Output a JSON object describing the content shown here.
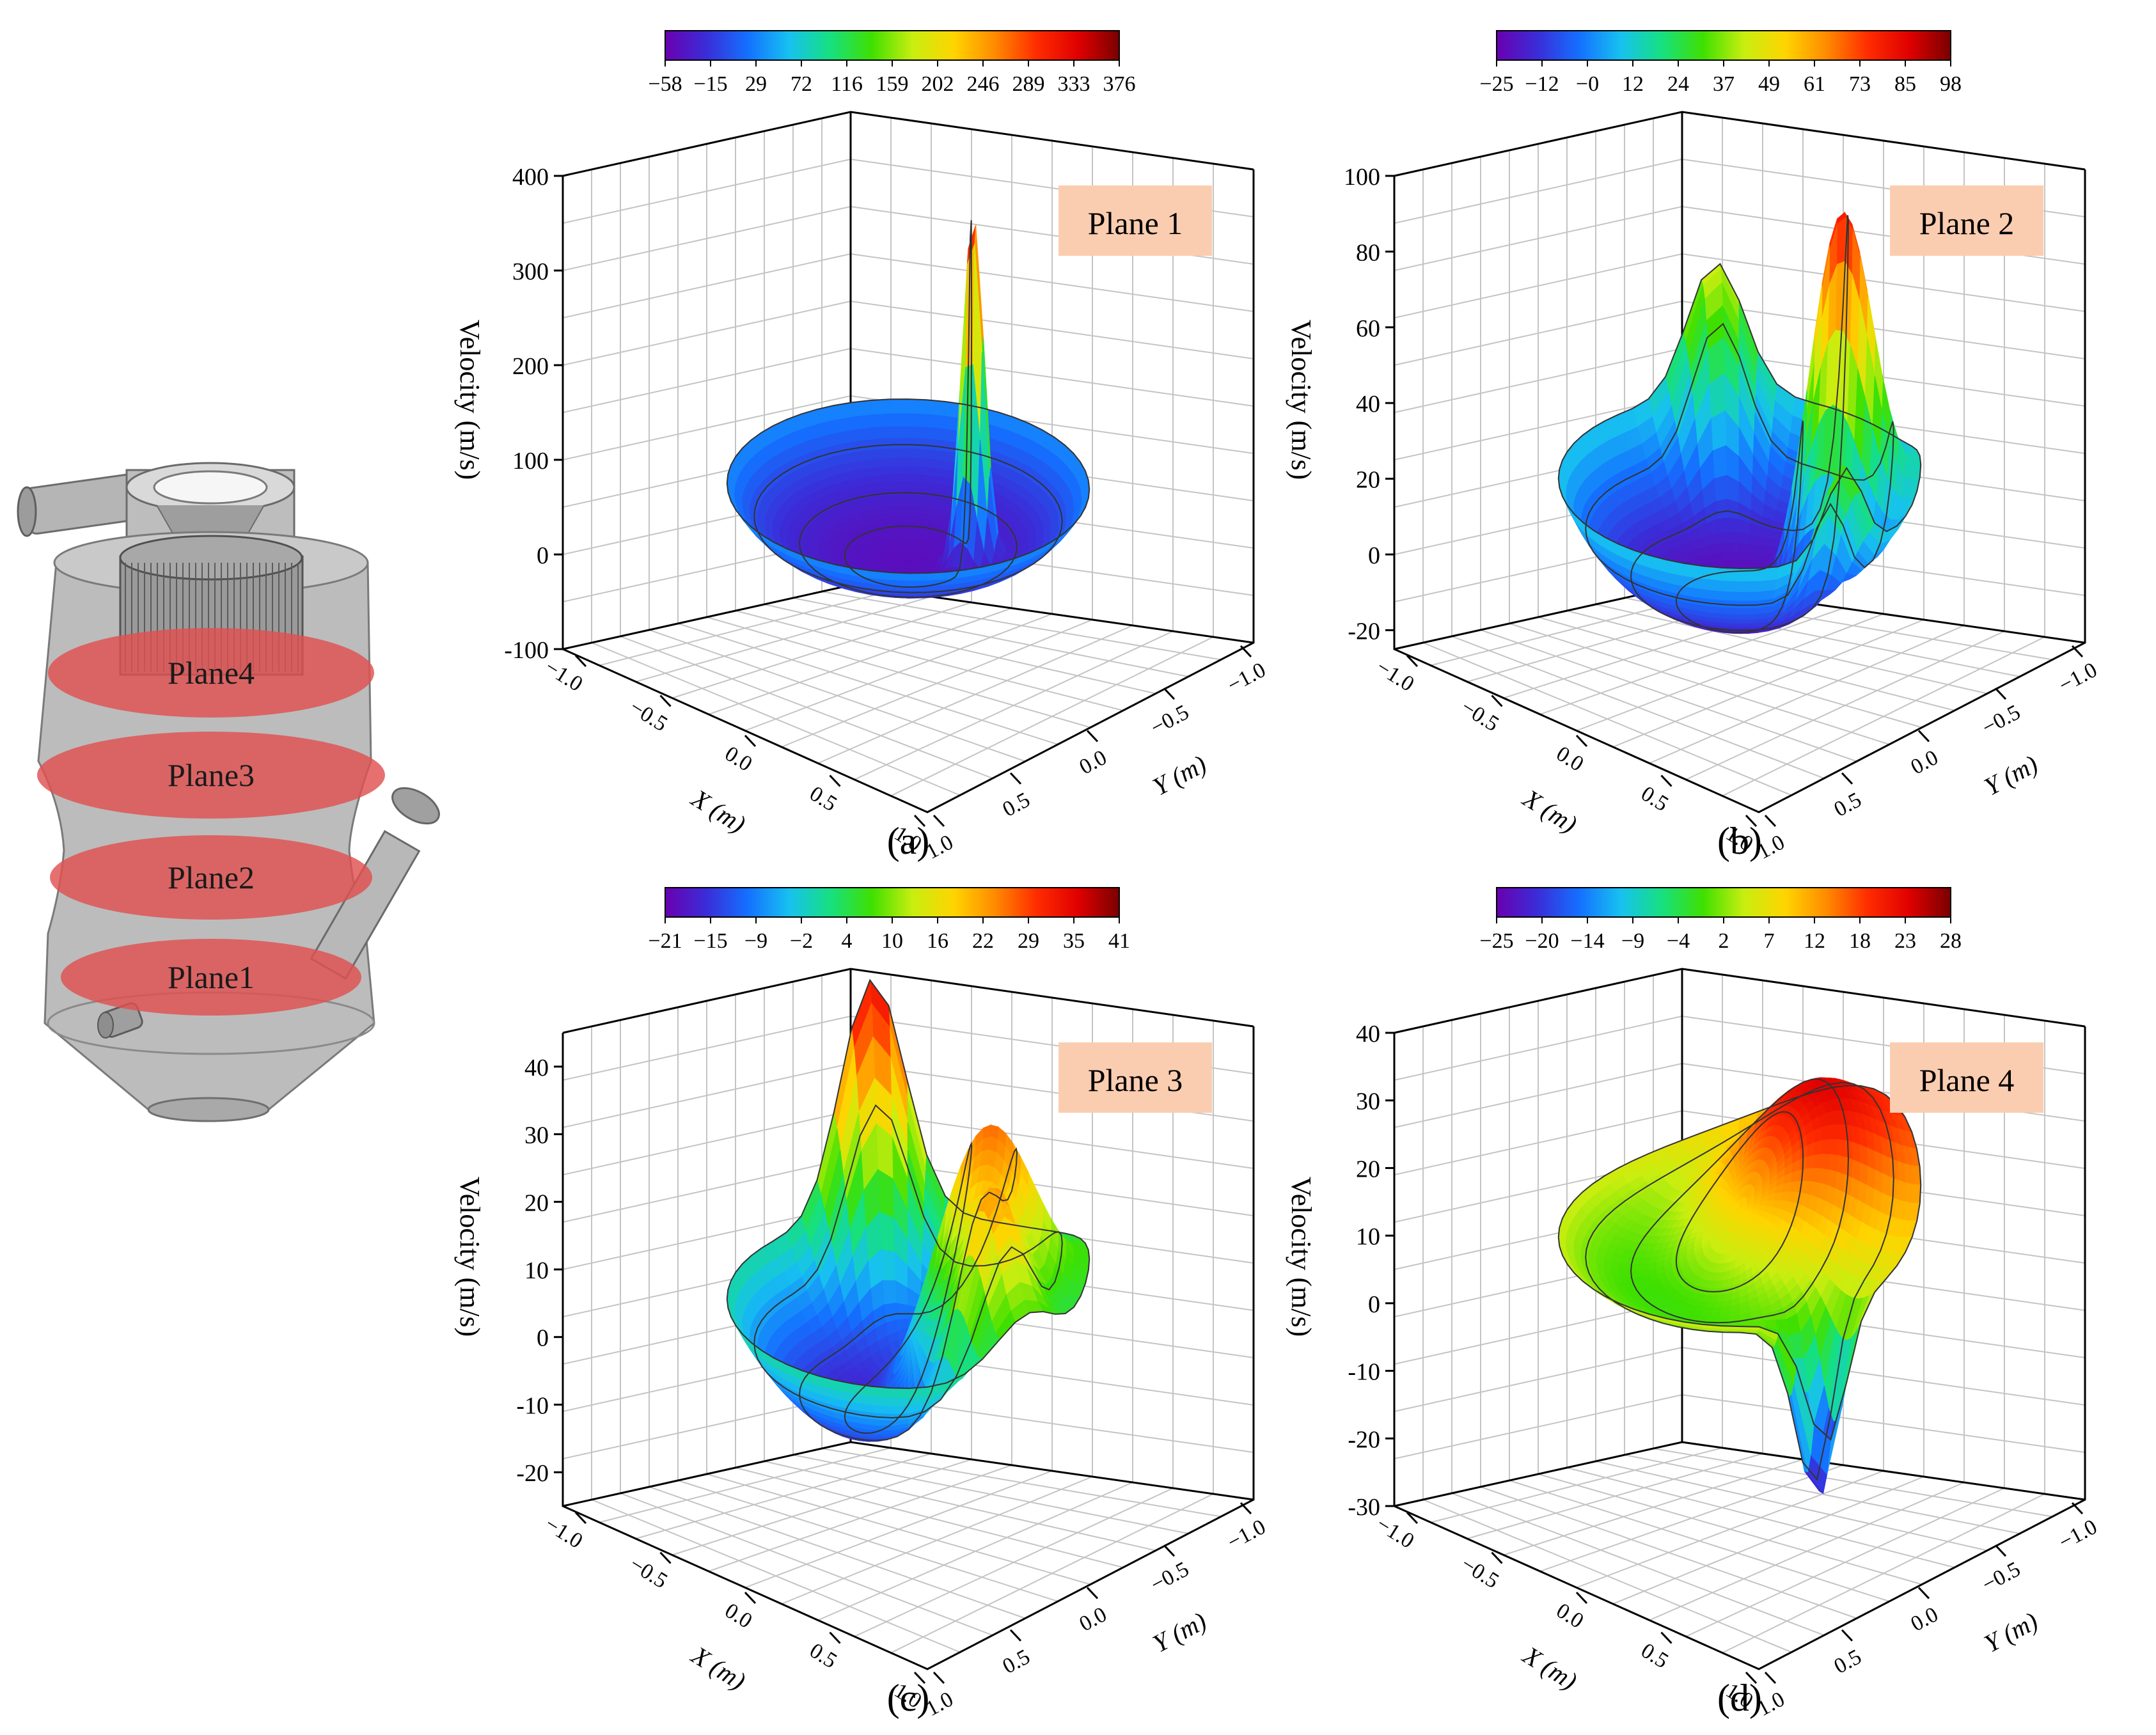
{
  "device": {
    "plane_labels": [
      "Plane4",
      "Plane3",
      "Plane2",
      "Plane1"
    ]
  },
  "colors": {
    "rainbow": [
      "#6a00b0",
      "#3a2dd8",
      "#1470ff",
      "#17c1f0",
      "#16e080",
      "#3fe000",
      "#c8ee10",
      "#ffd400",
      "#ff8a00",
      "#ff2c00",
      "#e00000",
      "#7a0000"
    ],
    "plane_band": "#e05050",
    "label_box": "#fbcdb0",
    "grid": "#c4c4c4"
  },
  "chart_data": [
    {
      "type": "surface3d",
      "panel_label": "(a)",
      "plane_label": "Plane 1",
      "zlabel": "Velocity (m/s)",
      "xlabel": "X (m)",
      "ylabel": "Y (m)",
      "zlim": [
        -100,
        400
      ],
      "zticks": [
        "-100",
        "0",
        "100",
        "200",
        "300",
        "400"
      ],
      "xticks": [
        "−1.0",
        "−0.5",
        "0.0",
        "0.5",
        "1.0"
      ],
      "yticks": [
        "−1.0",
        "−0.5",
        "0.0",
        "0.5",
        "1.0"
      ],
      "colorbar_ticks": [
        "−58",
        "−15",
        "29",
        "72",
        "116",
        "159",
        "202",
        "246",
        "289",
        "333",
        "376"
      ],
      "colorbar_range": [
        -58,
        376
      ],
      "surface": {
        "ring_base": 0,
        "ring_height": 70,
        "bowl_depth": -45,
        "peaks": [
          {
            "x": 0.3,
            "y": 0.2,
            "value": 376,
            "width": 0.06
          }
        ]
      }
    },
    {
      "type": "surface3d",
      "panel_label": "(b)",
      "plane_label": "Plane 2",
      "zlabel": "Velocity (m/s)",
      "xlabel": "X (m)",
      "ylabel": "Y (m)",
      "zlim": [
        -25,
        100
      ],
      "zticks": [
        "-20",
        "0",
        "20",
        "40",
        "60",
        "80",
        "100"
      ],
      "xticks": [
        "−1.0",
        "−0.5",
        "0.0",
        "0.5",
        "1.0"
      ],
      "yticks": [
        "−1.0",
        "−0.5",
        "0.0",
        "0.5",
        "1.0"
      ],
      "colorbar_ticks": [
        "−25",
        "−12",
        "−0",
        "12",
        "24",
        "37",
        "49",
        "61",
        "73",
        "85",
        "98"
      ],
      "colorbar_range": [
        -25,
        98
      ],
      "surface": {
        "ring_base": 0,
        "ring_height": 20,
        "bowl_depth": -25,
        "peaks": [
          {
            "x": 0.4,
            "y": 0.4,
            "value": 98,
            "width": 0.18
          },
          {
            "x": -0.7,
            "y": 0.6,
            "value": 40,
            "width": 0.15
          },
          {
            "x": 0.9,
            "y": -0.2,
            "value": 28,
            "width": 0.12
          }
        ]
      }
    },
    {
      "type": "surface3d",
      "panel_label": "(c)",
      "plane_label": "Plane 3",
      "zlabel": "Velocity (m/s)",
      "xlabel": "X (m)",
      "ylabel": "Y (m)",
      "zlim": [
        -25,
        45
      ],
      "zticks": [
        "-20",
        "-10",
        "0",
        "10",
        "20",
        "30",
        "40"
      ],
      "xticks": [
        "−1.0",
        "−0.5",
        "0.0",
        "0.5",
        "1.0"
      ],
      "yticks": [
        "−1.0",
        "−0.5",
        "0.0",
        "0.5",
        "1.0"
      ],
      "colorbar_ticks": [
        "−21",
        "−15",
        "−9",
        "−2",
        "4",
        "10",
        "16",
        "22",
        "29",
        "35",
        "41"
      ],
      "colorbar_range": [
        -21,
        41
      ],
      "surface": {
        "ring_base": -2,
        "ring_height": 4,
        "bowl_depth": -21,
        "peaks": [
          {
            "x": 0.3,
            "y": 0.3,
            "value": 41,
            "width": 0.3
          },
          {
            "x": -0.8,
            "y": 0.6,
            "value": 33,
            "width": 0.18
          },
          {
            "x": 0.7,
            "y": -0.1,
            "value": 25,
            "width": 0.18
          }
        ]
      }
    },
    {
      "type": "surface3d",
      "panel_label": "(d)",
      "plane_label": "Plane 4",
      "zlabel": "Velocity (m/s)",
      "xlabel": "X (m)",
      "ylabel": "Y (m)",
      "zlim": [
        -30,
        40
      ],
      "zticks": [
        "-30",
        "-20",
        "-10",
        "0",
        "10",
        "20",
        "30",
        "40"
      ],
      "xticks": [
        "−1.0",
        "−0.5",
        "0.0",
        "0.5",
        "1.0"
      ],
      "yticks": [
        "−1.0",
        "−0.5",
        "0.0",
        "0.5",
        "1.0"
      ],
      "colorbar_ticks": [
        "−25",
        "−20",
        "−14",
        "−9",
        "−4",
        "2",
        "7",
        "12",
        "18",
        "23",
        "28"
      ],
      "colorbar_range": [
        -25,
        28
      ],
      "surface": {
        "ring_base": 2,
        "ring_height": 4,
        "bowl_depth": -5,
        "peaks": [
          {
            "x": 0.1,
            "y": 0.5,
            "value": 28,
            "width": 0.45
          },
          {
            "x": 0.85,
            "y": -0.3,
            "value": -25,
            "width": 0.12
          }
        ]
      }
    }
  ]
}
